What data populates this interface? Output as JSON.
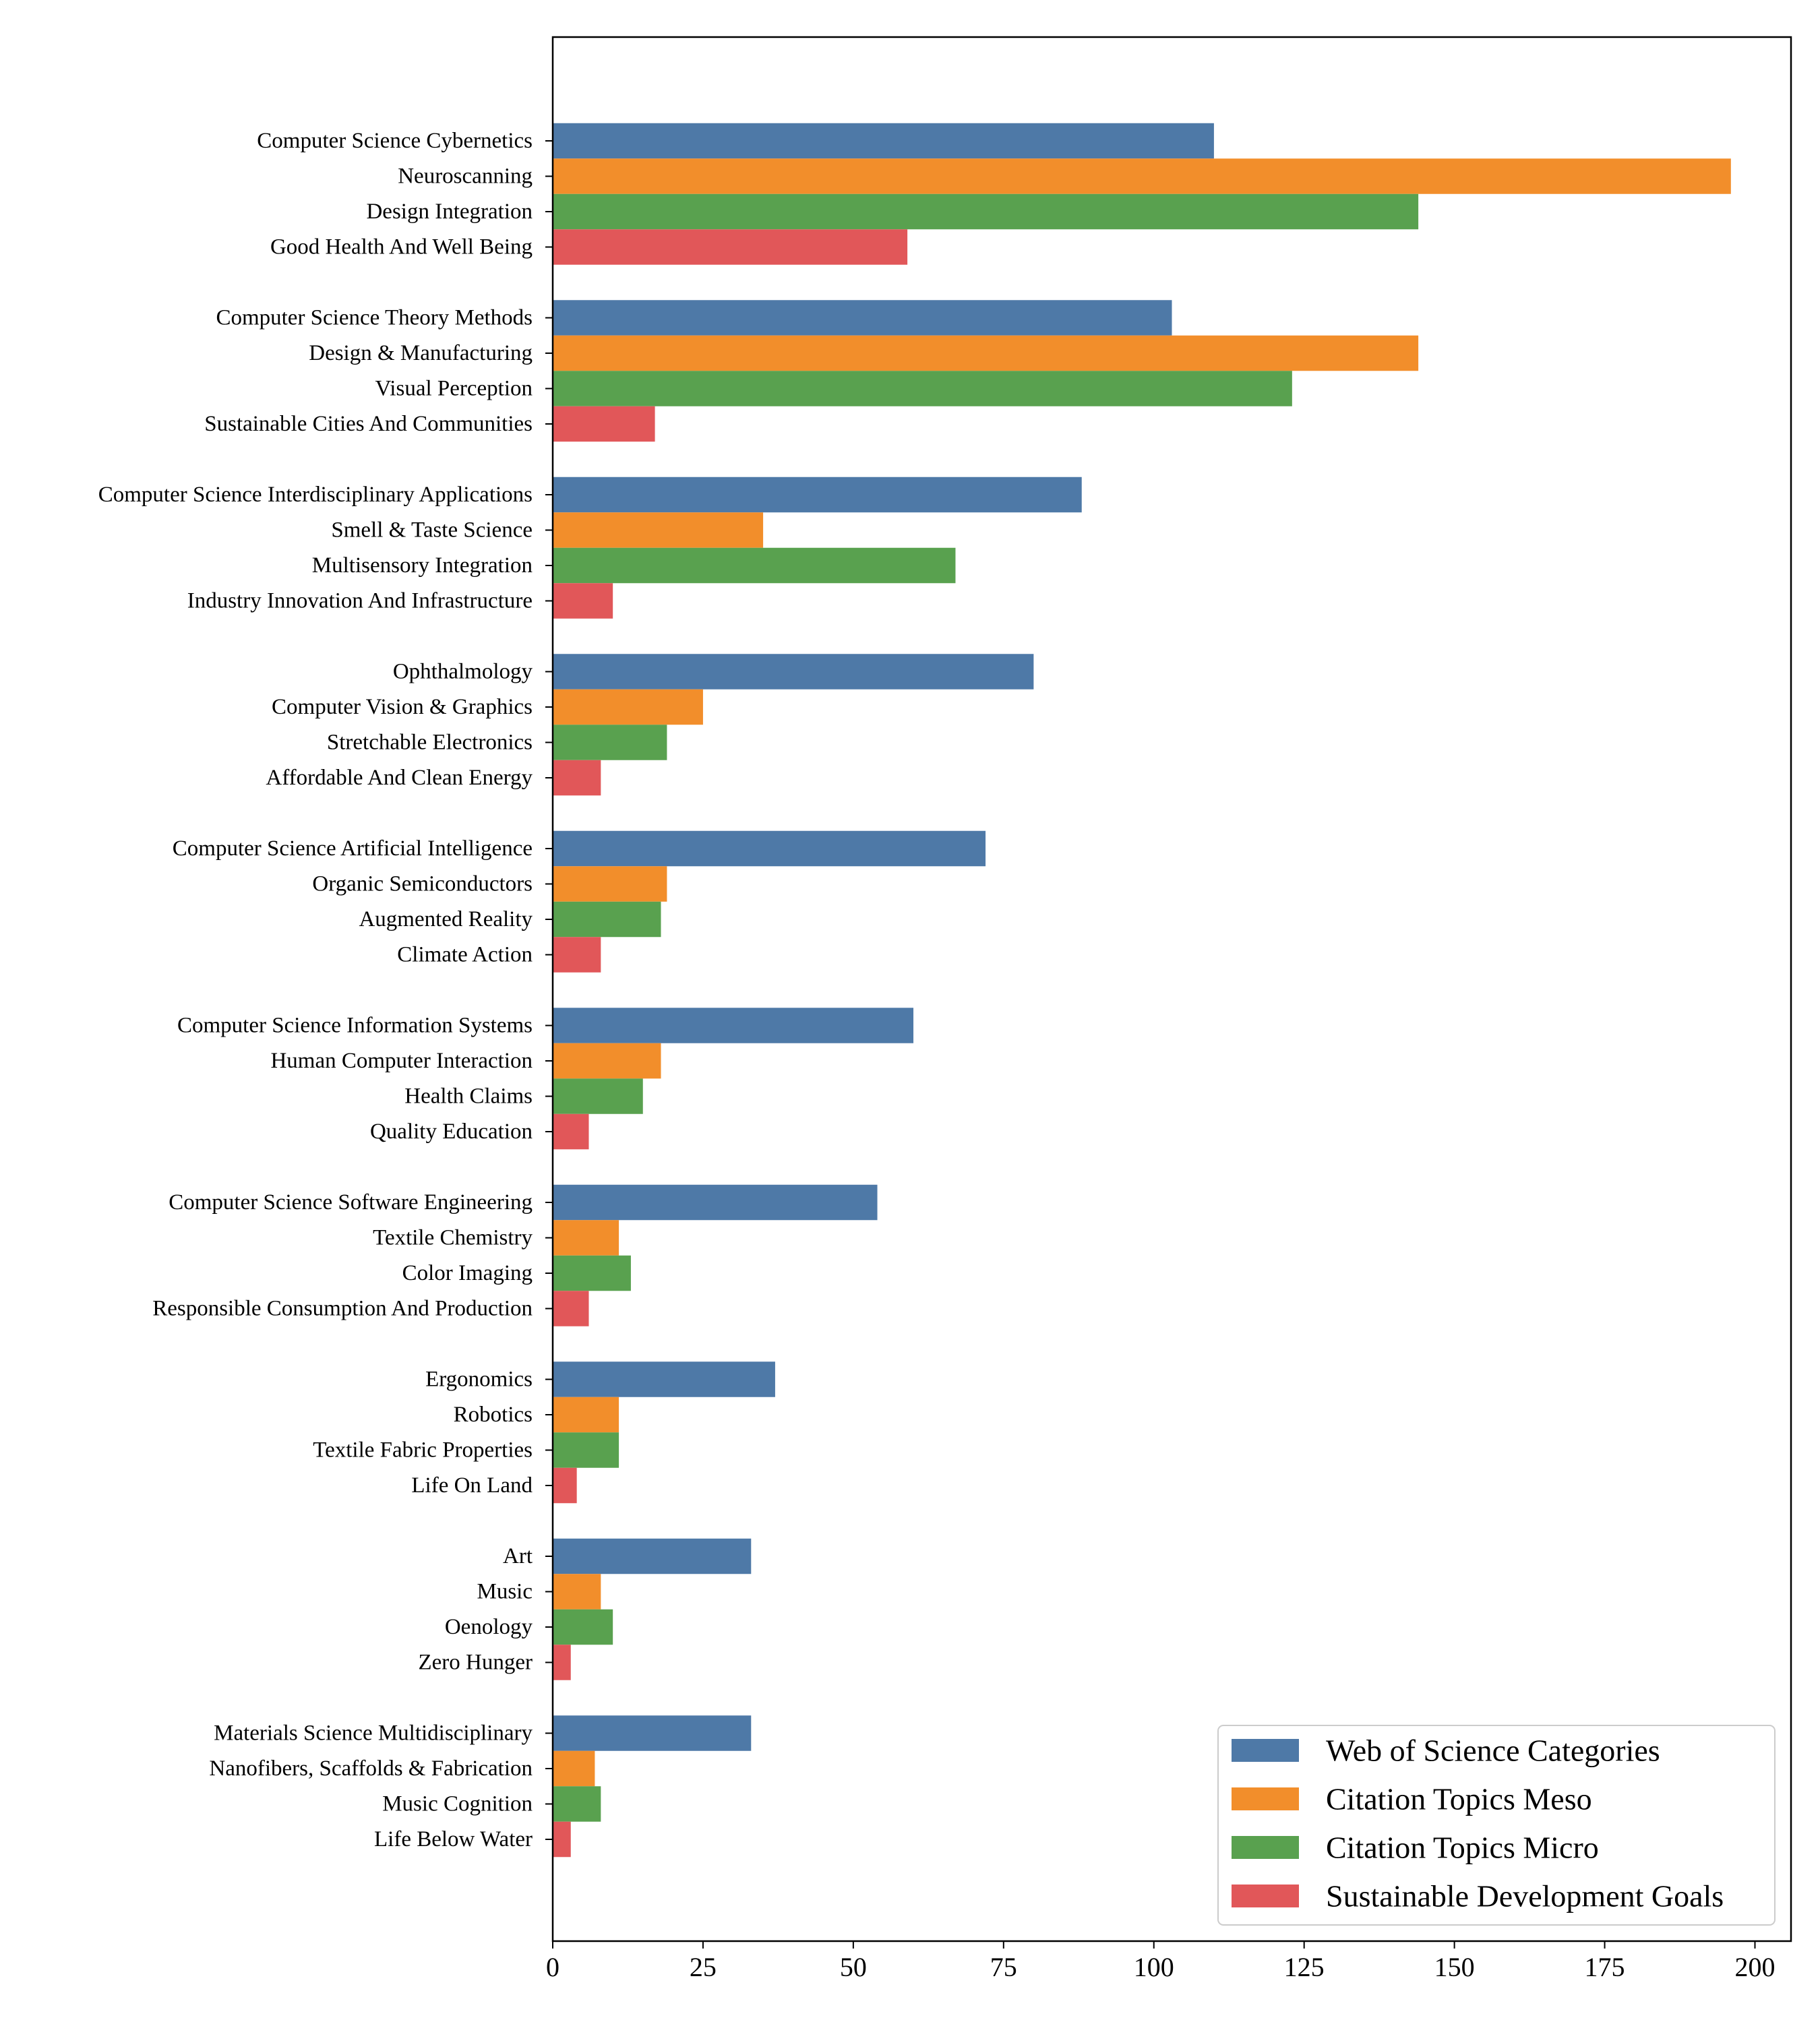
{
  "chart_data": {
    "type": "bar",
    "orientation": "horizontal",
    "title": "",
    "xlabel": "",
    "ylabel": "",
    "xlim": [
      0,
      206
    ],
    "x_ticks": [
      0,
      25,
      50,
      75,
      100,
      125,
      150,
      175,
      200
    ],
    "grid": false,
    "legend_position": "bottom-right",
    "series": [
      {
        "name": "Web of Science Categories",
        "color": "#4e79a7"
      },
      {
        "name": "Citation Topics Meso",
        "color": "#f28e2b"
      },
      {
        "name": "Citation Topics Micro",
        "color": "#59a14f"
      },
      {
        "name": "Sustainable Development Goals",
        "color": "#e15759"
      }
    ],
    "groups": [
      {
        "bars": [
          {
            "label": "Computer Science Cybernetics",
            "value": 110
          },
          {
            "label": "Neuroscanning",
            "value": 196
          },
          {
            "label": "Design Integration",
            "value": 144
          },
          {
            "label": "Good Health And Well Being",
            "value": 59
          }
        ]
      },
      {
        "bars": [
          {
            "label": "Computer Science Theory Methods",
            "value": 103
          },
          {
            "label": "Design & Manufacturing",
            "value": 144
          },
          {
            "label": "Visual Perception",
            "value": 123
          },
          {
            "label": "Sustainable Cities And Communities",
            "value": 17
          }
        ]
      },
      {
        "bars": [
          {
            "label": "Computer Science Interdisciplinary Applications",
            "value": 88
          },
          {
            "label": "Smell & Taste Science",
            "value": 35
          },
          {
            "label": "Multisensory Integration",
            "value": 67
          },
          {
            "label": "Industry Innovation And Infrastructure",
            "value": 10
          }
        ]
      },
      {
        "bars": [
          {
            "label": "Ophthalmology",
            "value": 80
          },
          {
            "label": "Computer Vision & Graphics",
            "value": 25
          },
          {
            "label": "Stretchable Electronics",
            "value": 19
          },
          {
            "label": "Affordable And Clean Energy",
            "value": 8
          }
        ]
      },
      {
        "bars": [
          {
            "label": "Computer Science Artificial Intelligence",
            "value": 72
          },
          {
            "label": "Organic Semiconductors",
            "value": 19
          },
          {
            "label": "Augmented Reality",
            "value": 18
          },
          {
            "label": "Climate Action",
            "value": 8
          }
        ]
      },
      {
        "bars": [
          {
            "label": "Computer Science Information Systems",
            "value": 60
          },
          {
            "label": "Human Computer Interaction",
            "value": 18
          },
          {
            "label": "Health Claims",
            "value": 15
          },
          {
            "label": "Quality Education",
            "value": 6
          }
        ]
      },
      {
        "bars": [
          {
            "label": "Computer Science Software Engineering",
            "value": 54
          },
          {
            "label": "Textile Chemistry",
            "value": 11
          },
          {
            "label": "Color Imaging",
            "value": 13
          },
          {
            "label": "Responsible Consumption And Production",
            "value": 6
          }
        ]
      },
      {
        "bars": [
          {
            "label": "Ergonomics",
            "value": 37
          },
          {
            "label": "Robotics",
            "value": 11
          },
          {
            "label": "Textile Fabric Properties",
            "value": 11
          },
          {
            "label": "Life On Land",
            "value": 4
          }
        ]
      },
      {
        "bars": [
          {
            "label": "Art",
            "value": 33
          },
          {
            "label": "Music",
            "value": 8
          },
          {
            "label": "Oenology",
            "value": 10
          },
          {
            "label": "Zero Hunger",
            "value": 3
          }
        ]
      },
      {
        "bars": [
          {
            "label": "Materials Science Multidisciplinary",
            "value": 33
          },
          {
            "label": "Nanofibers, Scaffolds & Fabrication",
            "value": 7
          },
          {
            "label": "Music Cognition",
            "value": 8
          },
          {
            "label": "Life Below Water",
            "value": 3
          }
        ]
      }
    ]
  }
}
